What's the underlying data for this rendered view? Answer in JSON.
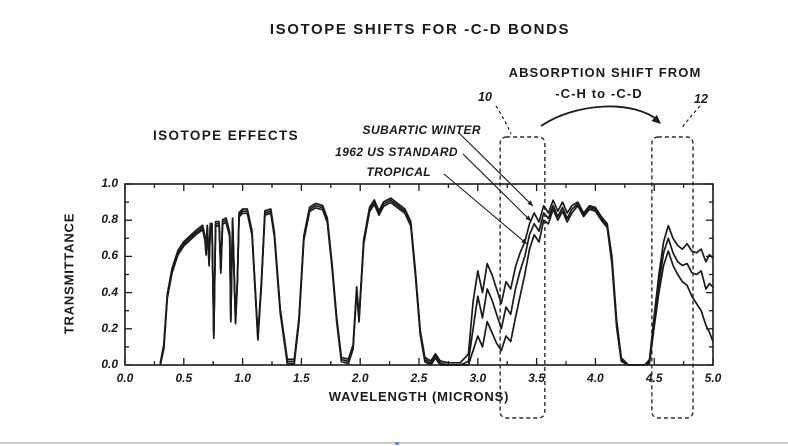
{
  "colors": {
    "ink": "#1b1b1b",
    "dashed_box": "#2c2c2c",
    "bottom_rule": "#cccccc",
    "progress_dot": "#5b8def"
  },
  "figure": {
    "title": "ISOTOPE SHIFTS FOR -C-D BONDS"
  },
  "annotations": {
    "isotope_effects": "ISOTOPE EFFECTS",
    "absorption_shift_line1": "ABSORPTION SHIFT FROM",
    "absorption_shift_line2": "-C-H to -C-D",
    "box_left_label": "10",
    "box_right_label": "12",
    "box_left_microns": [
      3.19,
      3.57
    ],
    "box_right_microns": [
      4.48,
      4.83
    ]
  },
  "chart_data": {
    "type": "line",
    "title": "ISOTOPE SHIFTS FOR -C-D BONDS",
    "xlabel": "WAVELENGTH (MICRONS)",
    "ylabel": "TRANSMITTANCE",
    "xlim": [
      0.0,
      5.0
    ],
    "ylim": [
      0.0,
      1.0
    ],
    "grid": false,
    "legend_position": "inline-labels-with-leader-lines",
    "x_tick_labels": [
      "0.0",
      "0.5",
      "1.0",
      "1.5",
      "2.0",
      "2.5",
      "3.0",
      "3.5",
      "4.0",
      "4.5",
      "5.0"
    ],
    "y_tick_labels": [
      "0.0",
      "0.2",
      "0.4",
      "0.6",
      "0.8",
      "1.0"
    ],
    "x_minor_step": 0.25,
    "y_minor_step": 0.1,
    "common_x": [
      0.3,
      0.33,
      0.36,
      0.4,
      0.45,
      0.5,
      0.55,
      0.6,
      0.64,
      0.66,
      0.68,
      0.69,
      0.7,
      0.715,
      0.725,
      0.74,
      0.755,
      0.77,
      0.8,
      0.815,
      0.83,
      0.86,
      0.89,
      0.9,
      0.915,
      0.94,
      0.955,
      0.97,
      1.0,
      1.04,
      1.08,
      1.13,
      1.16,
      1.19,
      1.24,
      1.27,
      1.32,
      1.38,
      1.44,
      1.48,
      1.52,
      1.57,
      1.62,
      1.68,
      1.72,
      1.76,
      1.8,
      1.84,
      1.9,
      1.94,
      1.97,
      1.99,
      2.03,
      2.08,
      2.12,
      2.16,
      2.2,
      2.26,
      2.32,
      2.38,
      2.43,
      2.47,
      2.51,
      2.55,
      2.6,
      2.64,
      2.68,
      2.75,
      2.85
    ],
    "common_t": [
      0.0,
      0.1,
      0.38,
      0.52,
      0.62,
      0.67,
      0.7,
      0.73,
      0.75,
      0.76,
      0.7,
      0.62,
      0.76,
      0.56,
      0.77,
      0.77,
      0.16,
      0.78,
      0.78,
      0.52,
      0.79,
      0.8,
      0.72,
      0.25,
      0.8,
      0.24,
      0.45,
      0.83,
      0.85,
      0.85,
      0.73,
      0.15,
      0.45,
      0.84,
      0.85,
      0.72,
      0.3,
      0.02,
      0.02,
      0.25,
      0.7,
      0.86,
      0.88,
      0.87,
      0.8,
      0.55,
      0.25,
      0.03,
      0.02,
      0.1,
      0.42,
      0.25,
      0.68,
      0.86,
      0.9,
      0.84,
      0.89,
      0.91,
      0.88,
      0.85,
      0.78,
      0.5,
      0.18,
      0.03,
      0.01,
      0.05,
      0.01,
      0.0,
      0.0
    ],
    "series_x": [
      2.92,
      2.96,
      3.0,
      3.04,
      3.08,
      3.12,
      3.16,
      3.2,
      3.24,
      3.28,
      3.32,
      3.36,
      3.4,
      3.44,
      3.48,
      3.52,
      3.56,
      3.6,
      3.64,
      3.68,
      3.72,
      3.76,
      3.8,
      3.85,
      3.9,
      3.95,
      4.0,
      4.05,
      4.1,
      4.14,
      4.18,
      4.22,
      4.28,
      4.35,
      4.42,
      4.46,
      4.5,
      4.54,
      4.58,
      4.62,
      4.66,
      4.7,
      4.74,
      4.78,
      4.82,
      4.86,
      4.9,
      4.94,
      4.97,
      5.0
    ],
    "series": [
      {
        "name": "SUBARTIC WINTER",
        "common_offset": 0.012,
        "t": [
          0.06,
          0.35,
          0.52,
          0.4,
          0.56,
          0.5,
          0.42,
          0.34,
          0.46,
          0.42,
          0.54,
          0.62,
          0.68,
          0.78,
          0.84,
          0.79,
          0.88,
          0.84,
          0.91,
          0.85,
          0.9,
          0.84,
          0.88,
          0.9,
          0.84,
          0.88,
          0.87,
          0.82,
          0.78,
          0.6,
          0.25,
          0.04,
          0.0,
          0.0,
          0.0,
          0.03,
          0.27,
          0.5,
          0.68,
          0.77,
          0.7,
          0.66,
          0.64,
          0.67,
          0.63,
          0.62,
          0.64,
          0.57,
          0.61,
          0.59
        ]
      },
      {
        "name": "1962 US STANDARD",
        "common_offset": 0.0,
        "t": [
          0.02,
          0.2,
          0.38,
          0.26,
          0.42,
          0.36,
          0.28,
          0.2,
          0.32,
          0.28,
          0.42,
          0.52,
          0.6,
          0.72,
          0.78,
          0.74,
          0.84,
          0.81,
          0.88,
          0.82,
          0.87,
          0.81,
          0.86,
          0.89,
          0.83,
          0.87,
          0.86,
          0.81,
          0.77,
          0.58,
          0.23,
          0.03,
          0.0,
          0.0,
          0.0,
          0.02,
          0.24,
          0.45,
          0.62,
          0.7,
          0.62,
          0.57,
          0.55,
          0.56,
          0.51,
          0.5,
          0.52,
          0.42,
          0.45,
          0.43
        ]
      },
      {
        "name": "TROPICAL",
        "common_offset": -0.012,
        "t": [
          0.0,
          0.08,
          0.16,
          0.1,
          0.24,
          0.18,
          0.12,
          0.08,
          0.16,
          0.13,
          0.26,
          0.38,
          0.5,
          0.64,
          0.72,
          0.68,
          0.8,
          0.78,
          0.86,
          0.8,
          0.85,
          0.79,
          0.84,
          0.88,
          0.82,
          0.86,
          0.85,
          0.8,
          0.76,
          0.56,
          0.21,
          0.02,
          0.0,
          0.0,
          0.0,
          0.01,
          0.21,
          0.4,
          0.55,
          0.63,
          0.55,
          0.5,
          0.46,
          0.44,
          0.38,
          0.34,
          0.3,
          0.22,
          0.18,
          0.13
        ]
      }
    ]
  }
}
